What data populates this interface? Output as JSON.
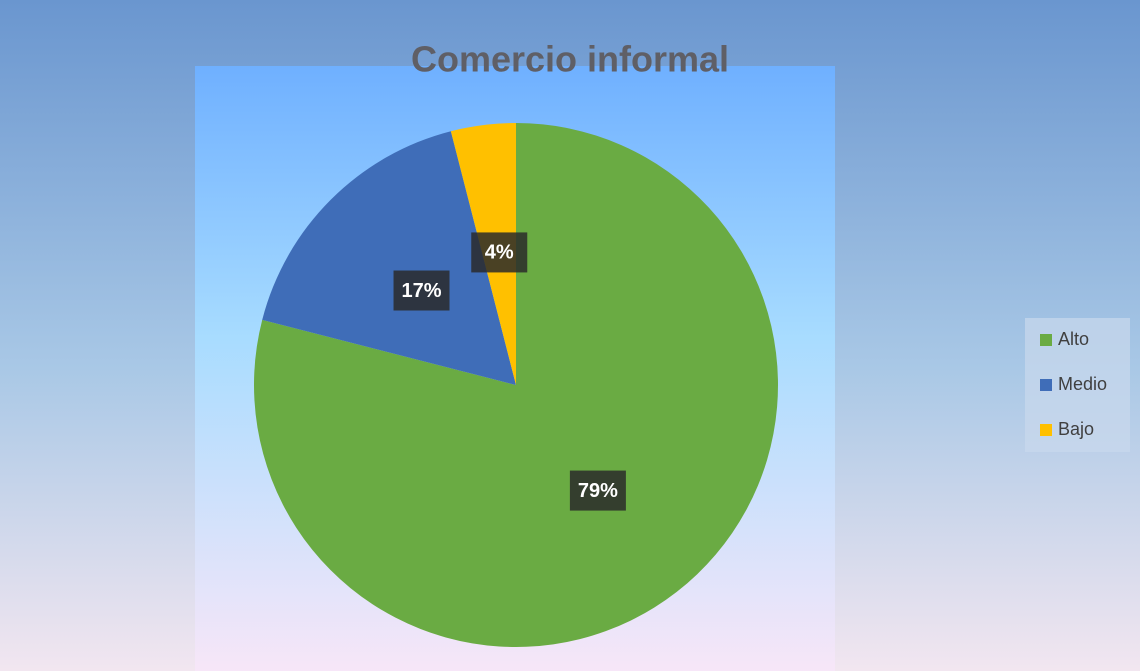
{
  "chart_data": {
    "type": "pie",
    "title": "Comercio informal",
    "categories": [
      "Alto",
      "Medio",
      "Bajo"
    ],
    "values": [
      79,
      17,
      4
    ],
    "value_labels": [
      "79%",
      "17%",
      "4%"
    ],
    "colors": [
      "#6aab43",
      "#3f6db8",
      "#ffc000"
    ],
    "legend": "right"
  }
}
